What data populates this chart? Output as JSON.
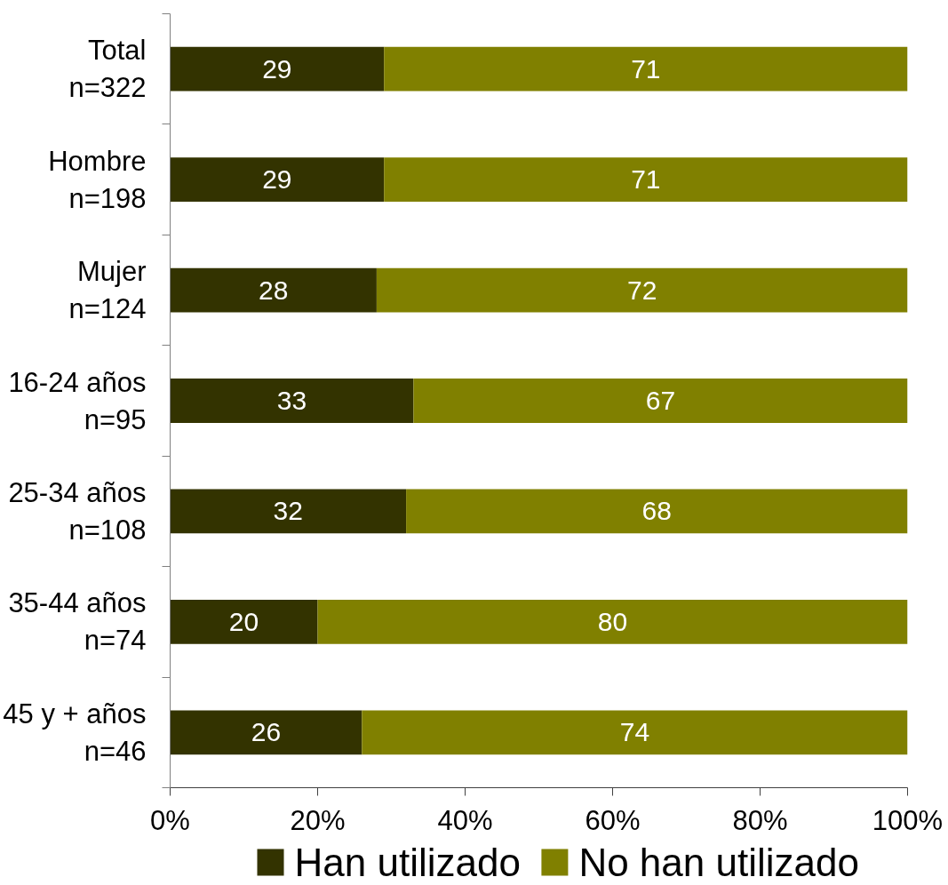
{
  "chart_data": {
    "type": "bar",
    "orientation": "horizontal",
    "stacked": true,
    "data_labels": true,
    "legend": "bottom",
    "categories": [
      "Total\nn=322",
      "Hombre\nn=198",
      "Mujer\nn=124",
      "16-24 años\nn=95",
      "25-34 años\nn=108",
      "35-44 años\nn=74",
      "45 y + años\nn=46"
    ],
    "series": [
      {
        "name": "Han utilizado",
        "color": "#333300",
        "values": [
          29,
          29,
          28,
          33,
          32,
          20,
          26
        ]
      },
      {
        "name": "No han utilizado",
        "color": "#808000",
        "values": [
          71,
          71,
          72,
          67,
          68,
          80,
          74
        ]
      }
    ],
    "xlim": [
      0,
      100
    ],
    "xticks": [
      {
        "value": 0,
        "label": "0%"
      },
      {
        "value": 20,
        "label": "20%"
      },
      {
        "value": 40,
        "label": "40%"
      },
      {
        "value": 60,
        "label": "60%"
      },
      {
        "value": 80,
        "label": "80%"
      },
      {
        "value": 100,
        "label": "100%"
      }
    ]
  }
}
